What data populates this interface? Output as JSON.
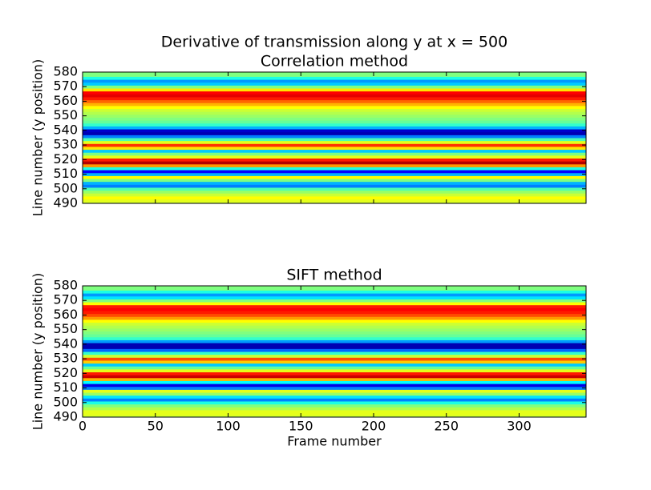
{
  "chart_data": [
    {
      "type": "heatmap",
      "title": "Derivative of transmission along y at x = 500",
      "subtitle": "Correlation method",
      "ylabel": "Line number (y position)",
      "colormap": "jet",
      "clim": [
        -1,
        1
      ],
      "xlim": [
        0,
        346
      ],
      "xticks": [
        0,
        50,
        100,
        150,
        200,
        250,
        300
      ],
      "ylim": [
        490,
        580
      ],
      "yticks": [
        490,
        500,
        510,
        520,
        530,
        540,
        550,
        560,
        570,
        580
      ],
      "y": [
        490,
        492,
        494,
        496,
        498,
        500,
        502,
        504,
        506,
        508,
        510,
        512,
        514,
        516,
        518,
        520,
        522,
        524,
        526,
        528,
        530,
        532,
        534,
        536,
        538,
        540,
        542,
        544,
        546,
        548,
        550,
        552,
        554,
        556,
        558,
        560,
        562,
        564,
        566,
        568,
        570,
        572,
        574,
        576,
        578,
        580
      ],
      "values": [
        0.15,
        0.2,
        0.25,
        0.15,
        0.05,
        -0.1,
        -0.5,
        -0.4,
        0.0,
        0.25,
        -0.4,
        -0.75,
        -0.2,
        0.45,
        0.9,
        0.7,
        0.2,
        0.0,
        -0.35,
        0.3,
        0.65,
        0.2,
        -0.1,
        -0.5,
        -0.9,
        -0.85,
        -0.4,
        -0.15,
        -0.05,
        0.0,
        0.05,
        0.1,
        0.15,
        0.25,
        0.4,
        0.55,
        0.7,
        0.8,
        0.75,
        0.3,
        0.0,
        -0.35,
        -0.45,
        -0.2,
        0.0,
        0.0
      ]
    },
    {
      "type": "heatmap",
      "title": "SIFT method",
      "xlabel": "Frame number",
      "ylabel": "Line number (y position)",
      "colormap": "jet",
      "clim": [
        -1,
        1
      ],
      "xlim": [
        0,
        346
      ],
      "xticks": [
        0,
        50,
        100,
        150,
        200,
        250,
        300
      ],
      "ylim": [
        490,
        580
      ],
      "yticks": [
        490,
        500,
        510,
        520,
        530,
        540,
        550,
        560,
        570,
        580
      ],
      "y": [
        490,
        492,
        494,
        496,
        498,
        500,
        502,
        504,
        506,
        508,
        510,
        512,
        514,
        516,
        518,
        520,
        522,
        524,
        526,
        528,
        530,
        532,
        534,
        536,
        538,
        540,
        542,
        544,
        546,
        548,
        550,
        552,
        554,
        556,
        558,
        560,
        562,
        564,
        566,
        568,
        570,
        572,
        574,
        576,
        578,
        580
      ],
      "values": [
        0.1,
        0.2,
        0.2,
        0.1,
        0.0,
        -0.2,
        -0.5,
        -0.3,
        0.05,
        0.2,
        -0.5,
        -0.8,
        -0.25,
        0.4,
        0.85,
        0.7,
        0.2,
        -0.05,
        -0.35,
        0.35,
        0.6,
        0.15,
        -0.15,
        -0.55,
        -0.9,
        -0.9,
        -0.45,
        -0.15,
        -0.05,
        0.0,
        0.05,
        0.1,
        0.15,
        0.25,
        0.45,
        0.6,
        0.7,
        0.75,
        0.7,
        0.25,
        0.0,
        -0.3,
        -0.45,
        -0.2,
        0.0,
        0.0
      ]
    }
  ]
}
